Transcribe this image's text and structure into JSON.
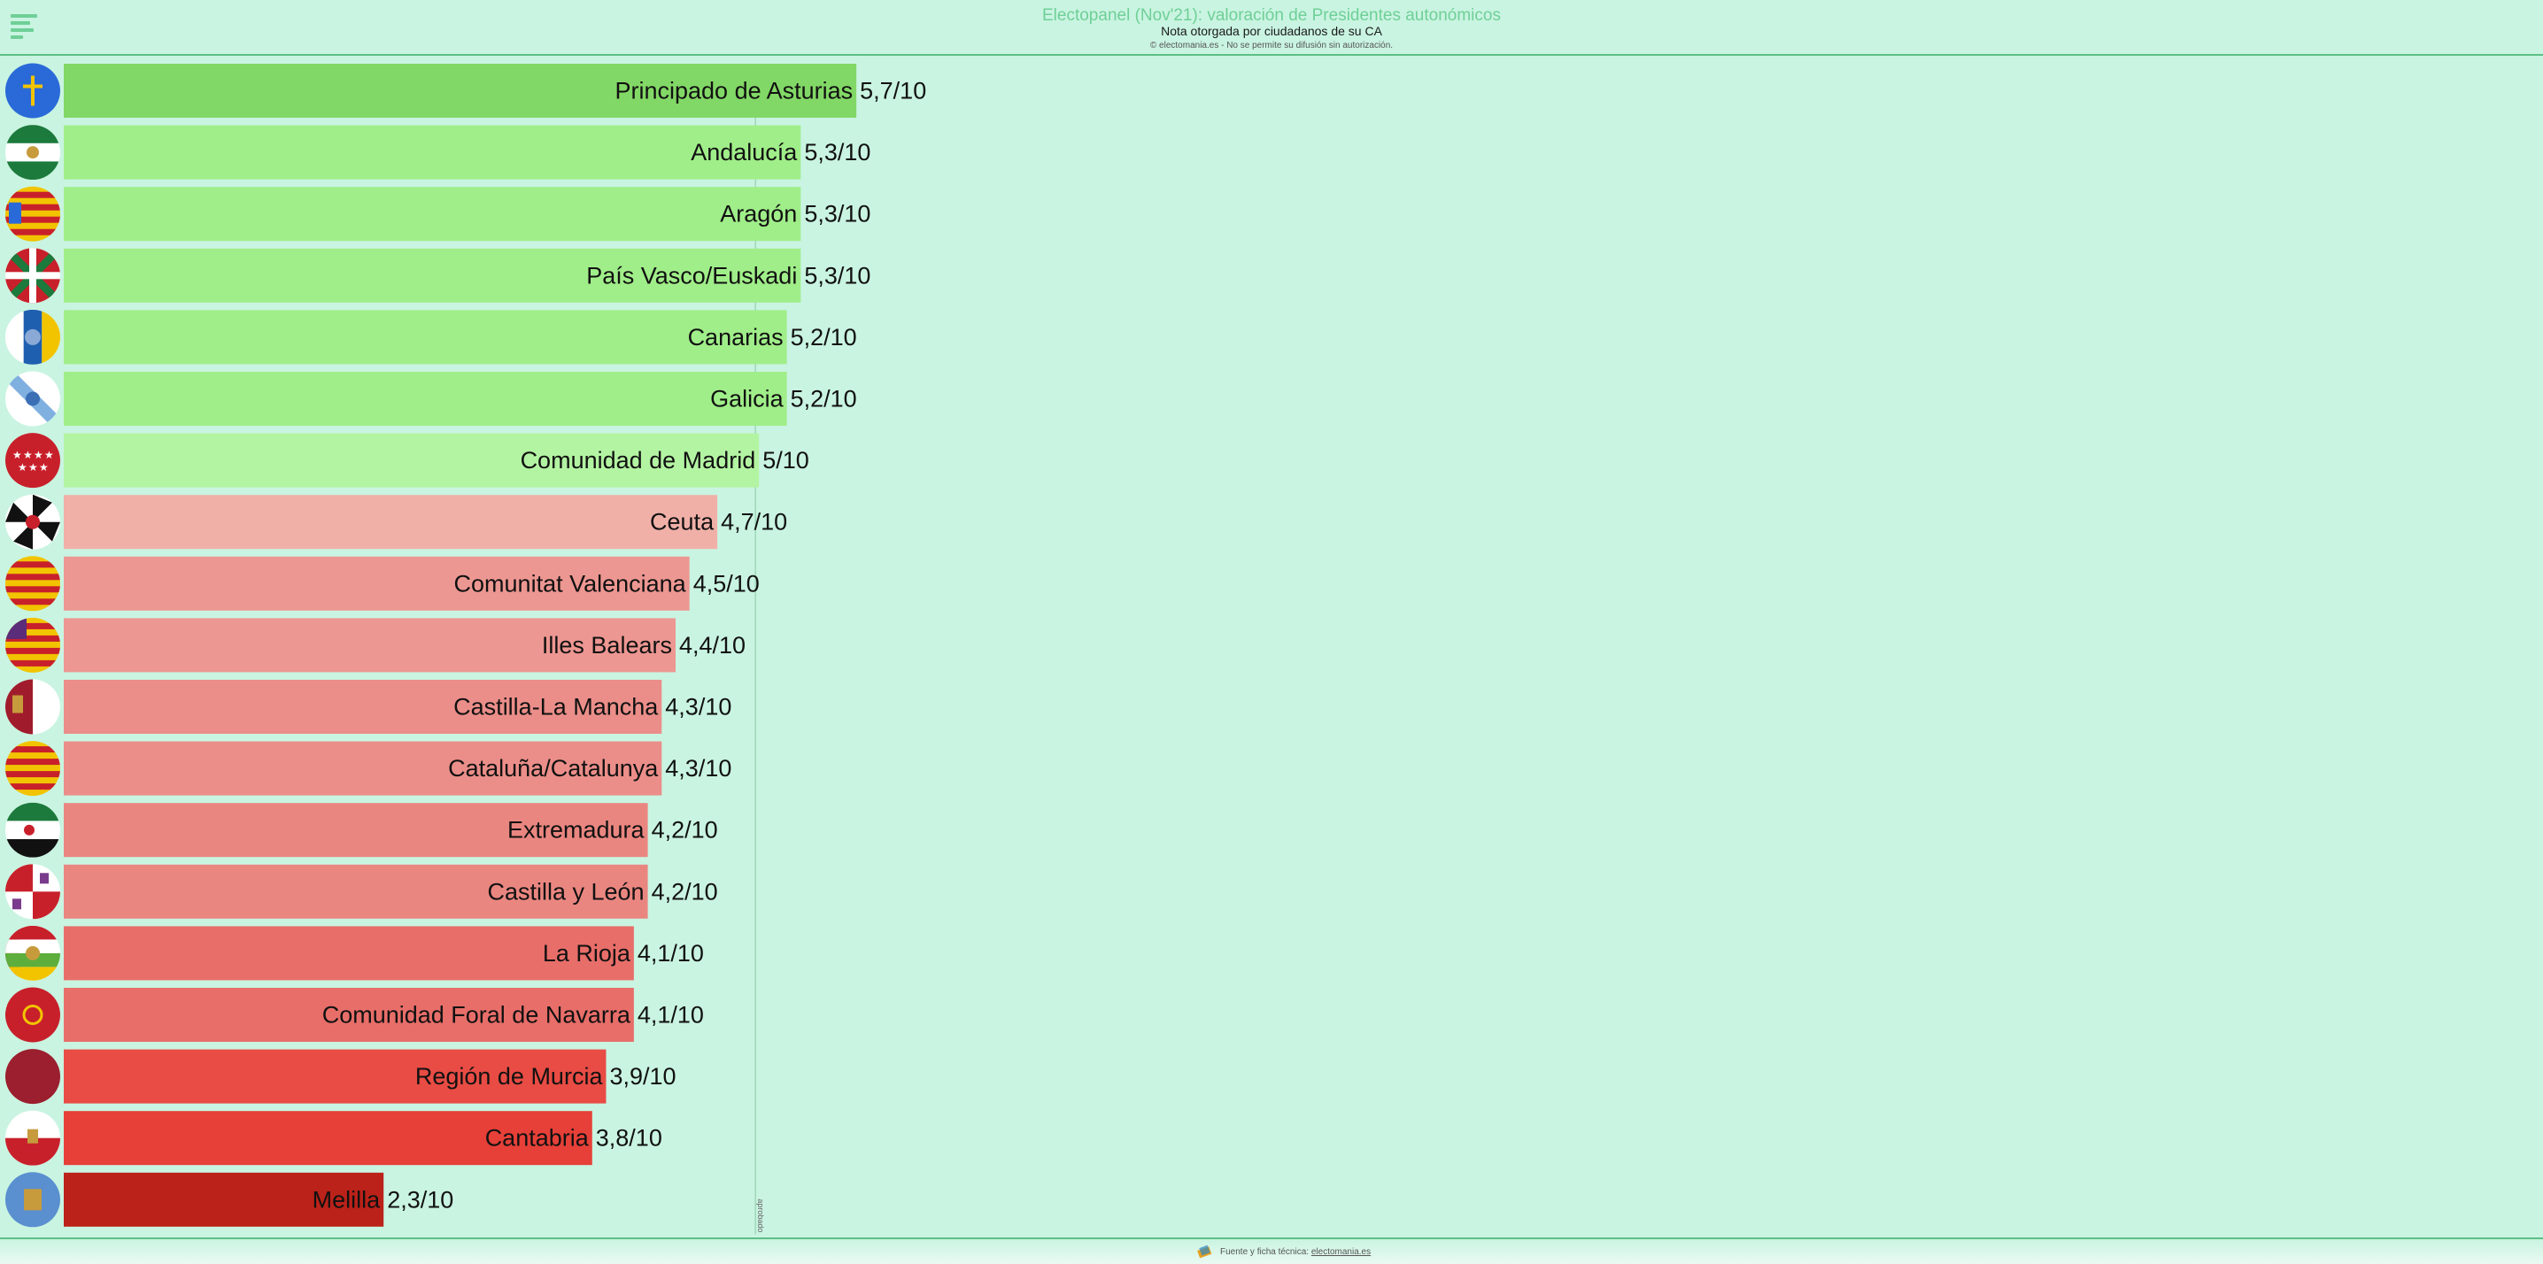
{
  "header": {
    "title": "Electopanel (Nov'21): valoración de Presidentes autonómicos",
    "subtitle": "Nota otorgada por ciudadanos de su CA",
    "copyright": "© electomania.es - No se permite su difusión sin autorización."
  },
  "footer": {
    "text": "Fuente y ficha técnica:",
    "link": "electomania.es"
  },
  "chart_data": {
    "type": "bar",
    "orientation": "horizontal",
    "categories": [
      "Principado de Asturias",
      "Andalucía",
      "Aragón",
      "País Vasco/Euskadi",
      "Canarias",
      "Galicia",
      "Comunidad de Madrid",
      "Ceuta",
      "Comunitat Valenciana",
      "Illes Balears",
      "Castilla-La Mancha",
      "Cataluña/Catalunya",
      "Extremadura",
      "Castilla y León",
      "La Rioja",
      "Comunidad Foral de Navarra",
      "Región de Murcia",
      "Cantabria",
      "Melilla"
    ],
    "values": [
      5.7,
      5.3,
      5.3,
      5.3,
      5.2,
      5.2,
      5.0,
      4.7,
      4.5,
      4.4,
      4.3,
      4.3,
      4.2,
      4.2,
      4.1,
      4.1,
      3.9,
      3.8,
      2.3
    ],
    "value_labels": [
      "5,7/10",
      "5,3/10",
      "5,3/10",
      "5,3/10",
      "5,2/10",
      "5,2/10",
      "5/10",
      "4,7/10",
      "4,5/10",
      "4,4/10",
      "4,3/10",
      "4,3/10",
      "4,2/10",
      "4,2/10",
      "4,1/10",
      "4,1/10",
      "3,9/10",
      "3,8/10",
      "2,3/10"
    ],
    "bar_colors": [
      "#82d866",
      "#a0ee89",
      "#a0ee89",
      "#a0ee89",
      "#a0ee89",
      "#a0ee89",
      "#b3f4a2",
      "#f0b0a8",
      "#ed9792",
      "#ed9792",
      "#eb8e89",
      "#eb8e89",
      "#ea8680",
      "#ea8680",
      "#e86e69",
      "#e86e69",
      "#e84c44",
      "#e64038",
      "#bb2219"
    ],
    "reference_line": {
      "value": 5,
      "label": "aprobado"
    },
    "xlim": [
      0,
      10
    ],
    "flag_icons": [
      "asturias-flag-icon",
      "andalucia-flag-icon",
      "aragon-flag-icon",
      "pais-vasco-flag-icon",
      "canarias-flag-icon",
      "galicia-flag-icon",
      "madrid-flag-icon",
      "ceuta-flag-icon",
      "valencia-flag-icon",
      "baleares-flag-icon",
      "castilla-la-mancha-flag-icon",
      "cataluna-flag-icon",
      "extremadura-flag-icon",
      "castilla-leon-flag-icon",
      "la-rioja-flag-icon",
      "navarra-flag-icon",
      "murcia-flag-icon",
      "cantabria-flag-icon",
      "melilla-flag-icon"
    ]
  }
}
